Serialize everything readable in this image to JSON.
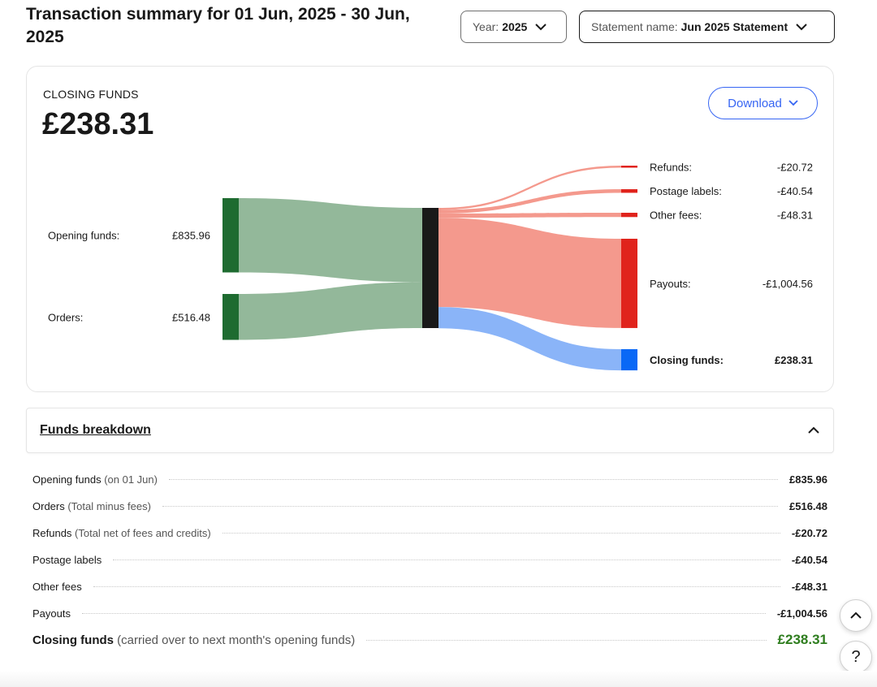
{
  "header": {
    "title": "Transaction summary for 01 Jun, 2025 - 30 Jun, 2025",
    "year_label": "Year:",
    "year_value": "2025",
    "statement_label": "Statement name:",
    "statement_value": "Jun 2025 Statement"
  },
  "summary": {
    "closing_label": "CLOSING FUNDS",
    "closing_amount": "£238.31",
    "download_label": "Download"
  },
  "chart_data": {
    "type": "sankey",
    "inputs": [
      {
        "label": "Opening funds:",
        "value_text": "£835.96",
        "value": 835.96
      },
      {
        "label": "Orders:",
        "value_text": "£516.48",
        "value": 516.48
      }
    ],
    "outputs": [
      {
        "label": "Refunds:",
        "value_text": "-£20.72",
        "value": 20.72
      },
      {
        "label": "Postage labels:",
        "value_text": "-£40.54",
        "value": 40.54
      },
      {
        "label": "Other fees:",
        "value_text": "-£48.31",
        "value": 48.31
      },
      {
        "label": "Payouts:",
        "value_text": "-£1,004.56",
        "value": 1004.56
      },
      {
        "label": "Closing funds:",
        "value_text": "£238.31",
        "value": 238.31
      }
    ],
    "colors": {
      "input_node": "#1e6b30",
      "input_flow": "#93b89a",
      "center_node": "#191919",
      "expense_node": "#e0231c",
      "expense_flow": "#f4998d",
      "closing_node": "#0968f6",
      "closing_flow": "#8ab4f8",
      "closing_text": "#2e7d1e"
    }
  },
  "breakdown": {
    "title": "Funds breakdown",
    "rows": [
      {
        "label": "Opening funds",
        "note": " (on 01 Jun)",
        "value": "£835.96"
      },
      {
        "label": "Orders",
        "note": " (Total minus fees)",
        "value": "£516.48"
      },
      {
        "label": "Refunds",
        "note": " (Total net of fees and credits)",
        "value": "-£20.72"
      },
      {
        "label": "Postage labels",
        "note": "",
        "value": "-£40.54"
      },
      {
        "label": "Other fees",
        "note": "",
        "value": "-£48.31"
      },
      {
        "label": "Payouts",
        "note": "",
        "value": "-£1,004.56"
      }
    ],
    "closing": {
      "label": "Closing funds",
      "note": " (carried over to next month's opening funds)",
      "value": "£238.31"
    }
  },
  "floating": {
    "help": "?"
  }
}
